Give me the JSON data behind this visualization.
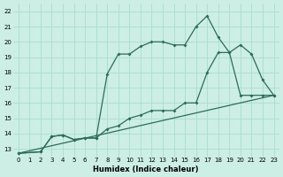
{
  "xlabel": "Humidex (Indice chaleur)",
  "background_color": "#cceee5",
  "grid_color": "#aaddcc",
  "line_color": "#2d6b5a",
  "xlim": [
    -0.5,
    23.5
  ],
  "ylim": [
    12.5,
    22.5
  ],
  "yticks": [
    13,
    14,
    15,
    16,
    17,
    18,
    19,
    20,
    21,
    22
  ],
  "xticks": [
    0,
    1,
    2,
    3,
    4,
    5,
    6,
    7,
    8,
    9,
    10,
    11,
    12,
    13,
    14,
    15,
    16,
    17,
    18,
    19,
    20,
    21,
    22,
    23
  ],
  "line1_x": [
    0,
    2,
    3,
    4,
    5,
    6,
    7,
    8,
    9,
    10,
    11,
    12,
    13,
    14,
    15,
    16,
    17,
    18,
    19,
    20,
    21,
    22,
    23
  ],
  "line1_y": [
    12.7,
    12.8,
    13.8,
    13.9,
    13.6,
    13.7,
    13.7,
    17.9,
    19.2,
    19.2,
    19.7,
    20.0,
    20.0,
    19.8,
    19.8,
    21.0,
    21.7,
    20.3,
    19.3,
    19.8,
    19.2,
    17.5,
    16.5
  ],
  "line2_x": [
    0,
    2,
    3,
    4,
    5,
    6,
    7,
    8,
    9,
    10,
    11,
    12,
    13,
    14,
    15,
    16,
    17,
    18,
    19,
    20,
    21,
    22,
    23
  ],
  "line2_y": [
    12.7,
    12.8,
    13.8,
    13.9,
    13.6,
    13.7,
    13.7,
    14.3,
    14.5,
    15.0,
    15.2,
    15.5,
    15.5,
    15.5,
    16.0,
    16.0,
    18.0,
    19.3,
    19.3,
    16.5,
    16.5,
    16.5,
    16.5
  ],
  "line3_x": [
    0,
    23
  ],
  "line3_y": [
    12.7,
    16.5
  ]
}
